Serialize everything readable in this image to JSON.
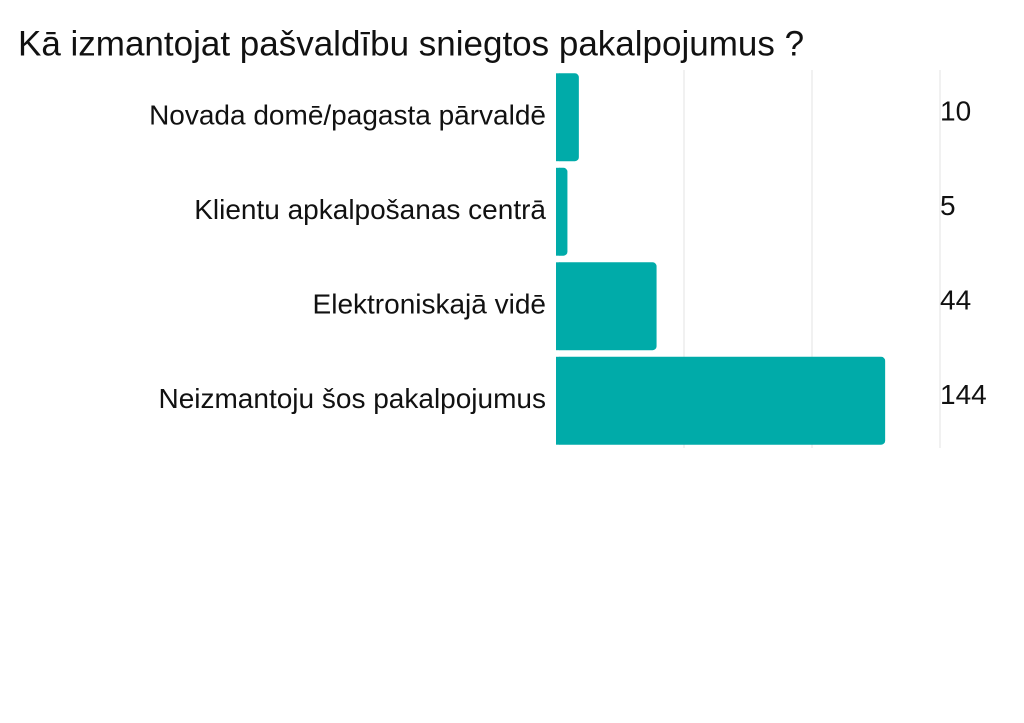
{
  "chart_data": {
    "type": "hbar",
    "title": "Kā izmantojat pašvaldību sniegtos pakalpojumus ?",
    "categories": [
      "Novada domē/pagasta pārvaldē",
      "Klientu apkalpošanas centrā",
      "Elektroniskajā vidē",
      "Neizmantoju šos pakalpojumus"
    ],
    "values": [
      10,
      5,
      44,
      144
    ],
    "color": "#00aba9",
    "xlim": [
      0,
      168
    ],
    "xticks": [
      0,
      56,
      112,
      168
    ],
    "grid": true
  }
}
